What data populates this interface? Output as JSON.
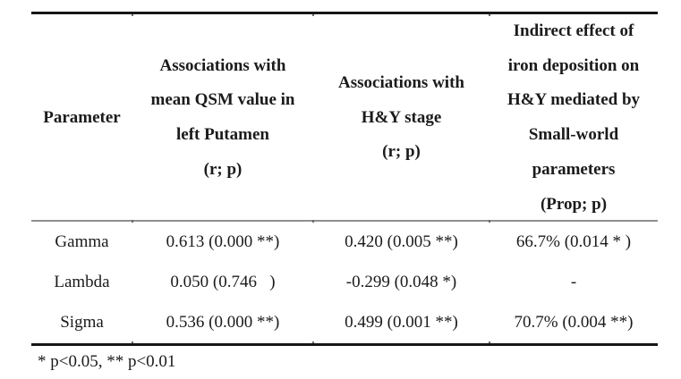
{
  "table": {
    "columns": [
      {
        "header": "Parameter"
      },
      {
        "header": "Associations with\nmean QSM value in\nleft Putamen\n(r; p)"
      },
      {
        "header": "Associations with\nH&Y stage\n(r; p)"
      },
      {
        "header": "Indirect effect of\niron deposition on\nH&Y mediated by\nSmall-world\nparameters\n(Prop; p)"
      }
    ],
    "rows": [
      {
        "parameter": "Gamma",
        "qsm": "0.613 (0.000 **)",
        "hy": "0.420 (0.005 **)",
        "indirect": "66.7% (0.014 * )"
      },
      {
        "parameter": "Lambda",
        "qsm": "0.050 (0.746   )",
        "hy": "-0.299 (0.048 *)",
        "indirect": "-"
      },
      {
        "parameter": "Sigma",
        "qsm": "0.536 (0.000 **)",
        "hy": "0.499 (0.001 **)",
        "indirect": "70.7% (0.004 **)"
      }
    ],
    "footnote": "* p<0.05, ** p<0.01"
  }
}
